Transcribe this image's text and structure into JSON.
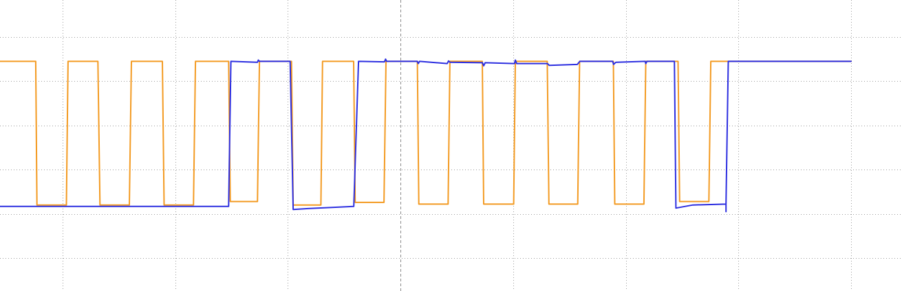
{
  "chart_data": {
    "type": "line",
    "title": "",
    "xlabel": "",
    "ylabel": "",
    "grid": true,
    "grid_divisions": {
      "x": 8,
      "y": 5
    },
    "xlim": [
      0,
      8
    ],
    "ylim": [
      -2.5,
      2.5
    ],
    "series": [
      {
        "color": "#f39a21",
        "points": [
          [
            0.0,
            1.95
          ],
          [
            0.763,
            1.95
          ],
          [
            0.774,
            -1.3
          ],
          [
            1.035,
            -1.3
          ],
          [
            1.05,
            1.95
          ],
          [
            1.315,
            1.95
          ],
          [
            1.333,
            -1.3
          ],
          [
            1.594,
            -1.3
          ],
          [
            1.612,
            1.95
          ],
          [
            1.887,
            1.95
          ],
          [
            1.902,
            -1.3
          ],
          [
            2.163,
            -1.3
          ],
          [
            2.181,
            1.95
          ],
          [
            2.475,
            1.95
          ],
          [
            2.49,
            -1.22
          ],
          [
            2.731,
            -1.22
          ],
          [
            2.749,
            1.95
          ],
          [
            3.033,
            1.95
          ],
          [
            3.048,
            -1.3
          ],
          [
            3.294,
            -1.3
          ],
          [
            3.309,
            1.95
          ],
          [
            3.585,
            1.95
          ],
          [
            3.598,
            -1.24
          ],
          [
            3.854,
            -1.24
          ],
          [
            3.872,
            1.95
          ],
          [
            4.15,
            1.95
          ],
          [
            4.163,
            -1.28
          ],
          [
            4.423,
            -1.28
          ],
          [
            4.439,
            1.95
          ],
          [
            4.727,
            1.95
          ],
          [
            4.739,
            -1.28
          ],
          [
            5.005,
            -1.28
          ],
          [
            5.02,
            1.95
          ],
          [
            5.303,
            1.95
          ],
          [
            5.318,
            -1.28
          ],
          [
            5.574,
            -1.28
          ],
          [
            5.59,
            1.95
          ],
          [
            5.89,
            1.95
          ],
          [
            5.902,
            -1.28
          ],
          [
            6.161,
            -1.28
          ],
          [
            6.178,
            1.95
          ],
          [
            6.464,
            1.95
          ],
          [
            6.478,
            -1.22
          ],
          [
            6.738,
            -1.22
          ],
          [
            6.755,
            1.95
          ],
          [
            8.0,
            1.95
          ]
        ]
      },
      {
        "color": "#2c2ee0",
        "points": [
          [
            0.0,
            -1.33
          ],
          [
            2.475,
            -1.33
          ],
          [
            2.495,
            1.95
          ],
          [
            2.731,
            1.93
          ],
          [
            2.739,
            1.98
          ],
          [
            2.749,
            1.95
          ],
          [
            3.021,
            1.95
          ],
          [
            3.048,
            -1.4
          ],
          [
            3.18,
            -1.38
          ],
          [
            3.586,
            -1.33
          ],
          [
            3.628,
            1.95
          ],
          [
            3.858,
            1.94
          ],
          [
            3.868,
            2.0
          ],
          [
            3.878,
            1.95
          ],
          [
            4.15,
            1.95
          ],
          [
            4.158,
            1.9
          ],
          [
            4.17,
            1.95
          ],
          [
            4.415,
            1.9
          ],
          [
            4.427,
            1.96
          ],
          [
            4.44,
            1.93
          ],
          [
            4.728,
            1.92
          ],
          [
            4.739,
            1.85
          ],
          [
            4.752,
            1.92
          ],
          [
            5.012,
            1.9
          ],
          [
            5.02,
            1.98
          ],
          [
            5.032,
            1.9
          ],
          [
            5.305,
            1.9
          ],
          [
            5.32,
            1.86
          ],
          [
            5.57,
            1.88
          ],
          [
            5.592,
            1.95
          ],
          [
            5.884,
            1.95
          ],
          [
            5.892,
            1.88
          ],
          [
            5.912,
            1.93
          ],
          [
            6.172,
            1.95
          ],
          [
            6.178,
            1.9
          ],
          [
            6.188,
            1.95
          ],
          [
            6.432,
            1.95
          ],
          [
            6.445,
            -1.37
          ],
          [
            6.595,
            -1.3
          ],
          [
            6.89,
            -1.28
          ],
          [
            6.89,
            -1.45
          ],
          [
            6.89,
            -1.28
          ],
          [
            6.91,
            1.95
          ],
          [
            8.0,
            1.95
          ]
        ]
      }
    ]
  }
}
